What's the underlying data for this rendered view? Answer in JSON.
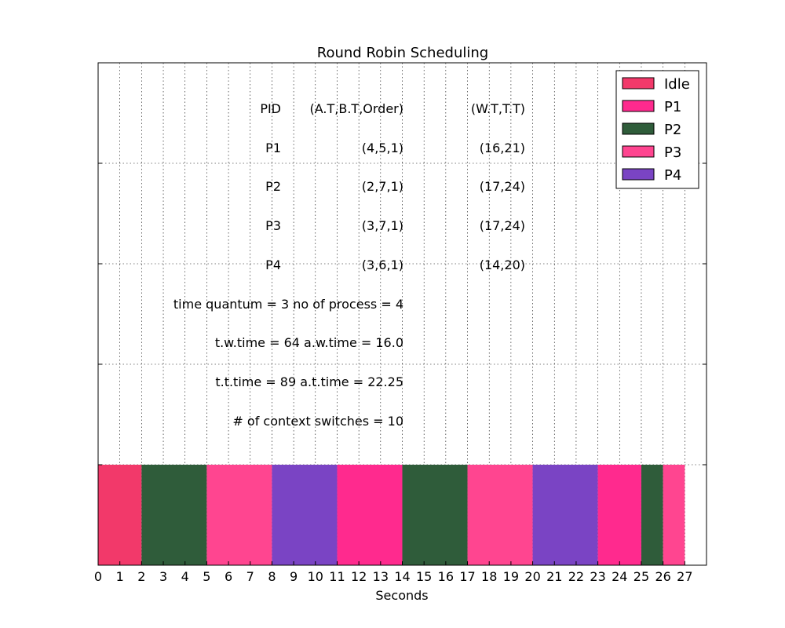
{
  "chart_data": {
    "type": "gantt",
    "title": "Round Robin Scheduling",
    "xlabel": "Seconds",
    "ylabel": "",
    "xlim": [
      0,
      28
    ],
    "x_ticks": [
      0,
      1,
      2,
      3,
      4,
      5,
      6,
      7,
      8,
      9,
      10,
      11,
      12,
      13,
      14,
      15,
      16,
      17,
      18,
      19,
      20,
      21,
      22,
      23,
      24,
      25,
      26,
      27
    ],
    "grid": true,
    "legend_position": "top-right",
    "legend": [
      {
        "name": "Idle",
        "color": "#f2396a"
      },
      {
        "name": "P1",
        "color": "#ff2a8e"
      },
      {
        "name": "P2",
        "color": "#2f5c3a"
      },
      {
        "name": "P3",
        "color": "#ff4590"
      },
      {
        "name": "P4",
        "color": "#7a44c4"
      }
    ],
    "segments": [
      {
        "process": "Idle",
        "start": 0,
        "end": 2
      },
      {
        "process": "P2",
        "start": 2,
        "end": 5
      },
      {
        "process": "P3",
        "start": 5,
        "end": 8
      },
      {
        "process": "P4",
        "start": 8,
        "end": 11
      },
      {
        "process": "P1",
        "start": 11,
        "end": 14
      },
      {
        "process": "P2",
        "start": 14,
        "end": 17
      },
      {
        "process": "P3",
        "start": 17,
        "end": 20
      },
      {
        "process": "P4",
        "start": 20,
        "end": 23
      },
      {
        "process": "P1",
        "start": 23,
        "end": 25
      },
      {
        "process": "P2",
        "start": 25,
        "end": 26
      },
      {
        "process": "P3",
        "start": 26,
        "end": 27
      }
    ],
    "table": {
      "header": {
        "pid": "PID",
        "input": "(A.T,B.T,Order)",
        "result": "(W.T,T.T)"
      },
      "rows": [
        {
          "pid": "P1",
          "input": "(4,5,1)",
          "result": "(16,21)"
        },
        {
          "pid": "P2",
          "input": "(2,7,1)",
          "result": "(17,24)"
        },
        {
          "pid": "P3",
          "input": "(3,7,1)",
          "result": "(17,24)"
        },
        {
          "pid": "P4",
          "input": "(3,6,1)",
          "result": "(14,20)"
        }
      ]
    },
    "annotations": [
      "time quantum = 3 no of process = 4",
      "t.w.time = 64 a.w.time = 16.0",
      "t.t.time = 89 a.t.time = 22.25",
      "# of context switches = 10"
    ]
  }
}
